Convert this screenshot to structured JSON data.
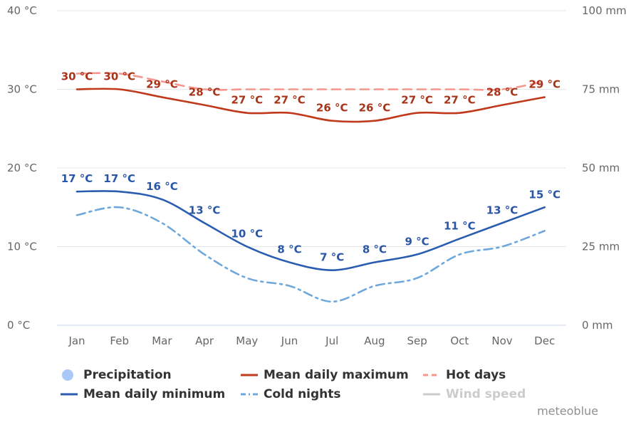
{
  "chart_data": {
    "type": "line",
    "categories": [
      "Jan",
      "Feb",
      "Mar",
      "Apr",
      "May",
      "Jun",
      "Jul",
      "Aug",
      "Sep",
      "Oct",
      "Nov",
      "Dec"
    ],
    "y_left": {
      "ylim": [
        0,
        40
      ],
      "ticks": [
        0,
        10,
        20,
        30,
        40
      ],
      "unit": "°C",
      "tick_labels": [
        "0 °C",
        "10 °C",
        "20 °C",
        "30 °C",
        "40 °C"
      ]
    },
    "y_right": {
      "ylim": [
        0,
        100
      ],
      "ticks": [
        0,
        25,
        50,
        75,
        100
      ],
      "unit": "mm",
      "tick_labels": [
        "0 mm",
        "25 mm",
        "50 mm",
        "75 mm",
        "100 mm"
      ]
    },
    "grid": true,
    "series": [
      {
        "name": "Mean daily maximum",
        "color": "#c0391b",
        "style": "solid",
        "axis": "left",
        "values": [
          30,
          30,
          29,
          28,
          27,
          27,
          26,
          26,
          27,
          27,
          28,
          29
        ],
        "labels": [
          "30 °C",
          "30 °C",
          "29 °C",
          "28 °C",
          "27 °C",
          "27 °C",
          "26 °C",
          "26 °C",
          "27 °C",
          "27 °C",
          "28 °C",
          "29 °C"
        ]
      },
      {
        "name": "Hot days",
        "color": "#f4978e",
        "style": "dashed",
        "axis": "left",
        "values": [
          32,
          32,
          31,
          30,
          30,
          30,
          30,
          30,
          30,
          30,
          30,
          31
        ]
      },
      {
        "name": "Mean daily minimum",
        "color": "#2a5db0",
        "style": "solid",
        "axis": "left",
        "values": [
          17,
          17,
          16,
          13,
          10,
          8,
          7,
          8,
          9,
          11,
          13,
          15
        ],
        "labels": [
          "17 °C",
          "17 °C",
          "16 °C",
          "13 °C",
          "10 °C",
          "8 °C",
          "7 °C",
          "8 °C",
          "9 °C",
          "11 °C",
          "13 °C",
          "15 °C"
        ]
      },
      {
        "name": "Cold nights",
        "color": "#6fa8dc",
        "style": "dashdot",
        "axis": "left",
        "values": [
          14,
          15,
          13,
          9,
          6,
          5,
          3,
          5,
          6,
          9,
          10,
          12
        ]
      }
    ],
    "legend": {
      "placement": "bottom",
      "items": [
        {
          "label": "Precipitation",
          "symbol": "circle",
          "color": "#a9c8f5",
          "hidden": false
        },
        {
          "label": "Mean daily maximum",
          "symbol": "solid",
          "color": "#c0391b",
          "hidden": false
        },
        {
          "label": "Hot days",
          "symbol": "dashed",
          "color": "#f4978e",
          "hidden": false
        },
        {
          "label": "Mean daily minimum",
          "symbol": "solid",
          "color": "#2a5db0",
          "hidden": false
        },
        {
          "label": "Cold nights",
          "symbol": "dashdot",
          "color": "#6fa8dc",
          "hidden": false
        },
        {
          "label": "Wind speed",
          "symbol": "solid",
          "color": "#cccccc",
          "hidden": true
        }
      ]
    },
    "credit": "meteoblue"
  }
}
